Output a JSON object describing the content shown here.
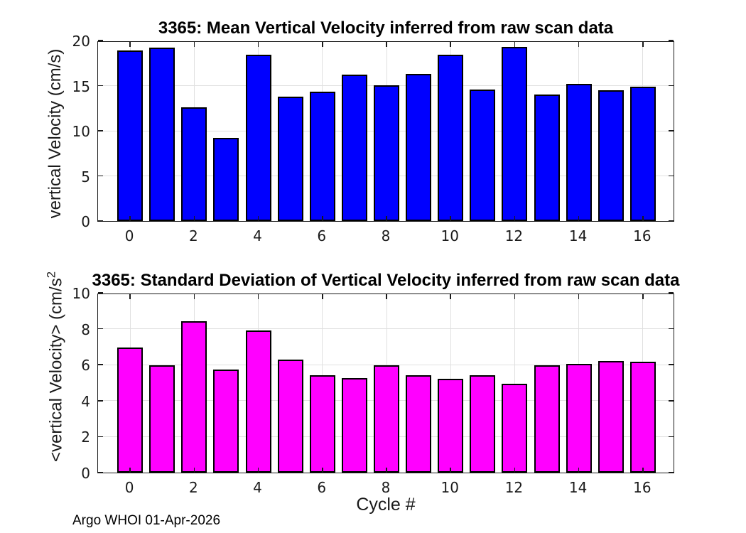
{
  "figure": {
    "background": "#ffffff"
  },
  "footer": {
    "text": "Argo WHOI 01-Apr-2026"
  },
  "xlabel": "Cycle #",
  "chart_data": [
    {
      "type": "bar",
      "title": "3365: Mean Vertical Velocity inferred from raw scan data",
      "ylabel": "vertical Velocity (cm/s)",
      "xlabel": "",
      "categories": [
        0,
        1,
        2,
        3,
        4,
        5,
        6,
        7,
        8,
        9,
        10,
        11,
        12,
        13,
        14,
        15,
        16
      ],
      "values": [
        18.9,
        19.2,
        12.6,
        9.2,
        18.4,
        13.8,
        14.3,
        16.2,
        15.0,
        16.3,
        18.4,
        14.6,
        19.3,
        14.0,
        15.2,
        14.5,
        14.9
      ],
      "xlim": [
        -1,
        17
      ],
      "ylim": [
        0,
        20
      ],
      "xticks": [
        0,
        2,
        4,
        6,
        8,
        10,
        12,
        14,
        16
      ],
      "yticks": [
        0,
        5,
        10,
        15,
        20
      ],
      "bar_width": 0.8,
      "bar_color": "#0000FF",
      "bar_edge_color": "#000000",
      "grid": true,
      "grid_color": "#e0e0e0",
      "legend": "none"
    },
    {
      "type": "bar",
      "title": "3365: Standard Deviation of Vertical Velocity inferred from raw scan data",
      "ylabel": "<vertical Velocity> (cm/s",
      "ylabel_sup": "2",
      "xlabel": "Cycle #",
      "categories": [
        0,
        1,
        2,
        3,
        4,
        5,
        6,
        7,
        8,
        9,
        10,
        11,
        12,
        13,
        14,
        15,
        16
      ],
      "values": [
        6.95,
        5.95,
        8.4,
        5.75,
        7.9,
        6.3,
        5.4,
        5.25,
        5.95,
        5.4,
        5.2,
        5.4,
        4.95,
        5.95,
        6.05,
        6.2,
        6.15
      ],
      "xlim": [
        -1,
        17
      ],
      "ylim": [
        0,
        10
      ],
      "xticks": [
        0,
        2,
        4,
        6,
        8,
        10,
        12,
        14,
        16
      ],
      "yticks": [
        0,
        2,
        4,
        6,
        8,
        10
      ],
      "bar_width": 0.8,
      "bar_color": "#FF00FF",
      "bar_edge_color": "#000000",
      "grid": true,
      "grid_color": "#e0e0e0",
      "legend": "none"
    }
  ]
}
